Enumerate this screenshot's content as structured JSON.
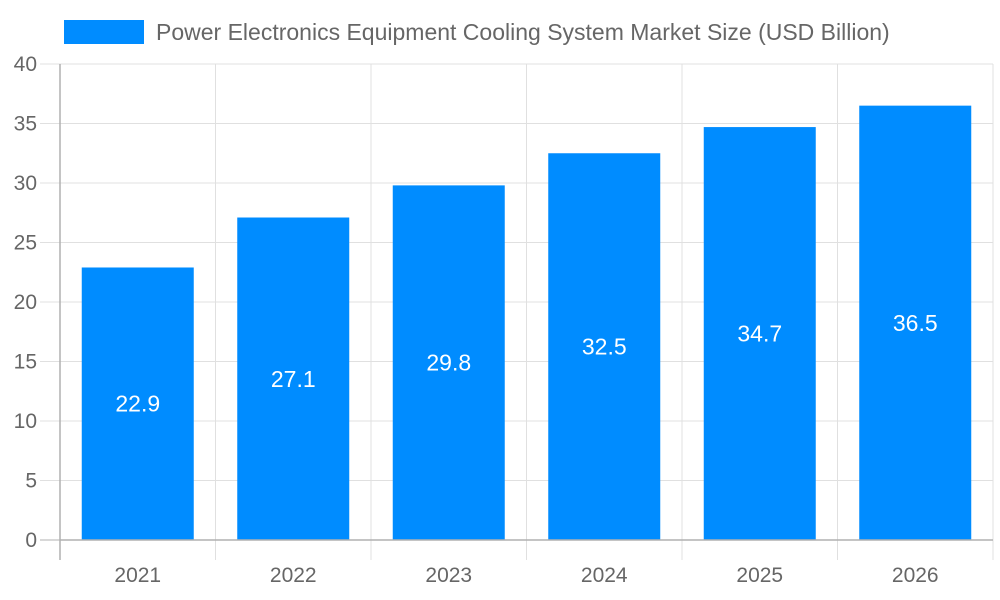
{
  "chart_data": {
    "type": "bar",
    "title": "",
    "xlabel": "",
    "ylabel": "",
    "categories": [
      "2021",
      "2022",
      "2023",
      "2024",
      "2025",
      "2026"
    ],
    "series": [
      {
        "name": "Power Electronics Equipment Cooling System Market Size (USD Billion)",
        "values": [
          22.9,
          27.1,
          29.8,
          32.5,
          34.7,
          36.5
        ],
        "color": "#008cff"
      }
    ],
    "ylim": [
      0,
      40
    ],
    "yticks": [
      0,
      5,
      10,
      15,
      20,
      25,
      30,
      35,
      40
    ],
    "grid": true,
    "legend": "top",
    "data_labels": true
  }
}
